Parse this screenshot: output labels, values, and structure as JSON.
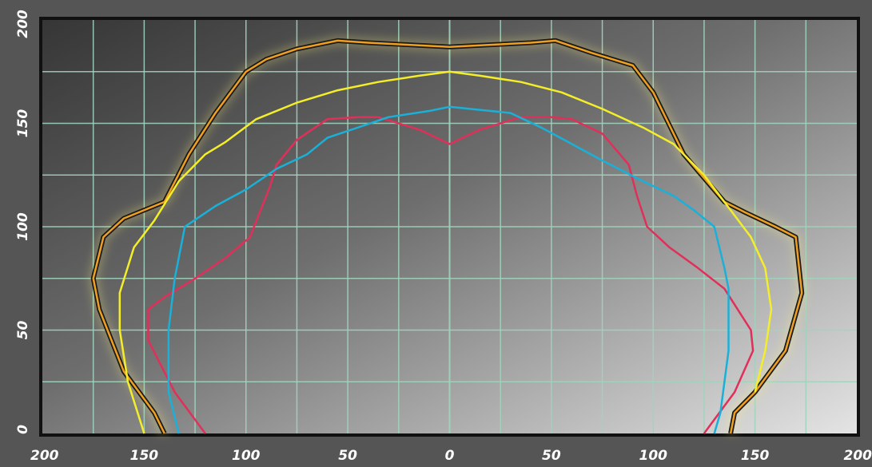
{
  "chart_data": {
    "type": "line",
    "title": "",
    "xlabel": "",
    "ylabel": "",
    "xlim": [
      -200,
      200
    ],
    "ylim": [
      0,
      200
    ],
    "x_ticks": [
      -200,
      -150,
      -100,
      -50,
      0,
      50,
      100,
      150,
      200
    ],
    "x_tick_labels": [
      "200",
      "150",
      "100",
      "50",
      "0",
      "50",
      "100",
      "150",
      "200"
    ],
    "y_ticks": [
      0,
      50,
      100,
      150,
      200
    ],
    "y_tick_labels": [
      "0",
      "50",
      "100",
      "150",
      "200"
    ],
    "grid": true,
    "legend": "none",
    "colors": {
      "background_dark": "#3a3a3a",
      "background_light": "#e2e2e2",
      "frame": "#555555",
      "grid": "#9fd4bd",
      "orange_series": "#f0a020",
      "yellow_series": "#f4ee2a",
      "red_series": "#e0305a",
      "blue_series": "#1ab0d8"
    },
    "series": [
      {
        "color": "#f0a020",
        "outline": true,
        "x": [
          -140,
          -145,
          -160,
          -172,
          -175,
          -170,
          -160,
          -140,
          -128,
          -115,
          -100,
          -90,
          -75,
          -55,
          -40,
          -20,
          0,
          20,
          40,
          52,
          70,
          90,
          100,
          115,
          135,
          145,
          160,
          170,
          173,
          165,
          150,
          140,
          138
        ],
        "y": [
          0,
          10,
          30,
          60,
          75,
          95,
          104,
          112,
          135,
          155,
          175,
          181,
          186,
          190,
          189,
          188,
          187,
          188,
          189,
          190,
          184,
          178,
          165,
          135,
          112,
          107,
          100,
          95,
          68,
          40,
          20,
          10,
          0
        ]
      },
      {
        "color": "#f4ee2a",
        "outline": false,
        "x": [
          -150,
          -158,
          -162,
          -162,
          -155,
          -145,
          -133,
          -120,
          -110,
          -95,
          -75,
          -55,
          -35,
          -15,
          0,
          15,
          35,
          55,
          75,
          95,
          110,
          125,
          138,
          148,
          155,
          158,
          155,
          150
        ],
        "y": [
          0,
          25,
          50,
          68,
          90,
          103,
          122,
          135,
          141,
          152,
          160,
          166,
          170,
          173,
          175,
          173,
          170,
          165,
          157,
          148,
          140,
          125,
          108,
          95,
          80,
          60,
          40,
          20
        ]
      },
      {
        "color": "#e0305a",
        "outline": false,
        "x": [
          -120,
          -135,
          -148,
          -148,
          -140,
          -125,
          -110,
          -98,
          -92,
          -88,
          -85,
          -75,
          -60,
          -45,
          -35,
          -15,
          0,
          15,
          35,
          50,
          60,
          75,
          88,
          92,
          97,
          108,
          122,
          135,
          148,
          149,
          140,
          125
        ],
        "y": [
          0,
          20,
          45,
          60,
          66,
          75,
          85,
          95,
          110,
          120,
          130,
          142,
          152,
          153,
          153,
          147,
          140,
          147,
          153,
          153,
          152,
          145,
          130,
          115,
          100,
          90,
          80,
          70,
          50,
          40,
          20,
          0
        ]
      },
      {
        "color": "#1ab0d8",
        "outline": false,
        "x": [
          -133,
          -138,
          -138,
          -135,
          -130,
          -115,
          -100,
          -85,
          -70,
          -60,
          -45,
          -30,
          -10,
          0,
          10,
          30,
          45,
          60,
          75,
          95,
          110,
          120,
          130,
          135,
          137,
          137,
          133,
          130
        ],
        "y": [
          0,
          20,
          50,
          75,
          100,
          110,
          118,
          128,
          135,
          143,
          148,
          153,
          156,
          158,
          157,
          155,
          148,
          140,
          132,
          122,
          115,
          108,
          100,
          80,
          70,
          40,
          10,
          0
        ]
      }
    ]
  }
}
